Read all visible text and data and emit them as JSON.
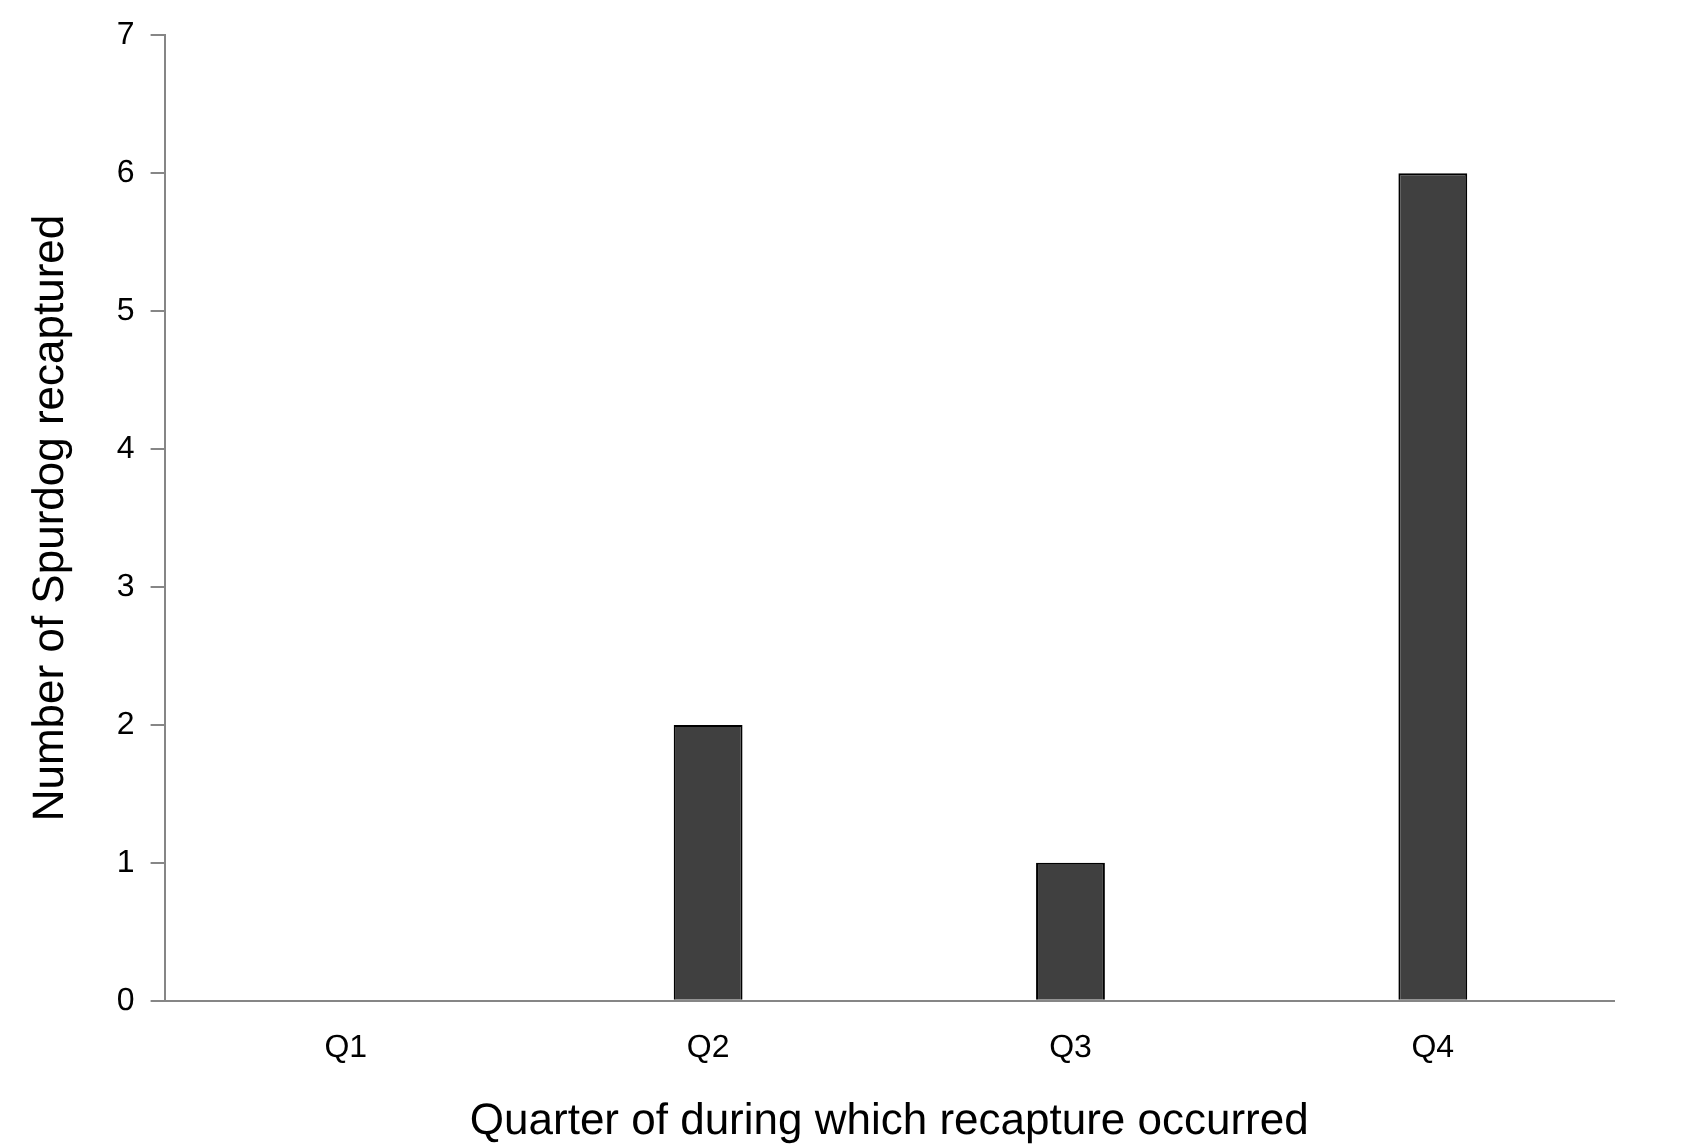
{
  "chart_data": {
    "type": "bar",
    "xlabel": "Quarter of during which recapture occurred",
    "ylabel": "Number of Spurdog recaptured",
    "categories": [
      "Q1",
      "Q2",
      "Q3",
      "Q4"
    ],
    "values": [
      0,
      2,
      1,
      6
    ],
    "color": "#404040",
    "ylim": [
      0,
      7
    ],
    "yticks": [
      0,
      1,
      2,
      3,
      4,
      5,
      6,
      7
    ],
    "grid": false,
    "legend": false
  }
}
